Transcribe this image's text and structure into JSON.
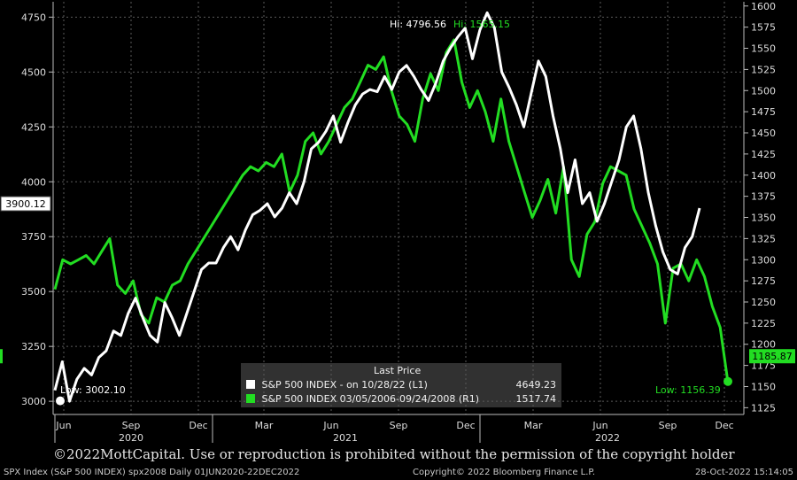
{
  "chart_data": {
    "type": "line",
    "title": "",
    "x_month_labels": [
      "Jun",
      "Sep",
      "Dec",
      "Mar",
      "Jun",
      "Sep",
      "Dec",
      "Mar",
      "Jun",
      "Sep",
      "Dec"
    ],
    "x_year_labels": [
      "2020",
      "2021",
      "2022"
    ],
    "left_axis": {
      "ticks": [
        "3000",
        "3250",
        "3500",
        "3750",
        "4000",
        "4250",
        "4500",
        "4750"
      ],
      "ylim": [
        2940,
        4820
      ]
    },
    "right_axis": {
      "ticks": [
        "1125",
        "1150",
        "1175",
        "1200",
        "1225",
        "1250",
        "1275",
        "1300",
        "1325",
        "1350",
        "1375",
        "1400",
        "1425",
        "1450",
        "1475",
        "1500",
        "1525",
        "1550",
        "1575",
        "1600"
      ],
      "ylim": [
        1117,
        1605
      ]
    },
    "series": [
      {
        "name": "S&P 500 INDEX - on 10/28/22 (L1)",
        "axis": "left",
        "color": "#ffffff",
        "values": [
          3050,
          3180,
          3000,
          3100,
          3150,
          3120,
          3200,
          3230,
          3320,
          3300,
          3400,
          3470,
          3380,
          3300,
          3270,
          3450,
          3380,
          3300,
          3400,
          3500,
          3600,
          3630,
          3630,
          3700,
          3750,
          3690,
          3780,
          3850,
          3870,
          3900,
          3840,
          3880,
          3950,
          3900,
          4000,
          4150,
          4180,
          4230,
          4300,
          4180,
          4270,
          4350,
          4400,
          4420,
          4410,
          4480,
          4420,
          4500,
          4530,
          4480,
          4420,
          4370,
          4450,
          4550,
          4610,
          4660,
          4700,
          4560,
          4690,
          4770,
          4700,
          4500,
          4430,
          4350,
          4250,
          4400,
          4550,
          4480,
          4300,
          4150,
          3950,
          4100,
          3900,
          3950,
          3820,
          3900,
          4000,
          4100,
          4250,
          4300,
          4150,
          3950,
          3800,
          3680,
          3600,
          3580,
          3700,
          3750,
          3880
        ],
        "hi_label": "Hi: 4796.56",
        "low_label": "Low: 3002.10"
      },
      {
        "name": "S&P 500 INDEX 03/05/2006-09/24/2008 (R1)",
        "axis": "right",
        "color": "#22dd22",
        "values": [
          1265,
          1300,
          1295,
          1300,
          1305,
          1295,
          1310,
          1325,
          1270,
          1260,
          1275,
          1235,
          1225,
          1255,
          1250,
          1270,
          1275,
          1295,
          1310,
          1325,
          1340,
          1355,
          1370,
          1385,
          1400,
          1410,
          1405,
          1415,
          1410,
          1425,
          1380,
          1400,
          1440,
          1450,
          1425,
          1440,
          1460,
          1480,
          1490,
          1510,
          1530,
          1525,
          1540,
          1500,
          1470,
          1460,
          1440,
          1490,
          1520,
          1500,
          1545,
          1560,
          1510,
          1480,
          1500,
          1475,
          1440,
          1490,
          1440,
          1410,
          1380,
          1350,
          1370,
          1395,
          1355,
          1410,
          1300,
          1280,
          1330,
          1345,
          1390,
          1410,
          1405,
          1400,
          1360,
          1340,
          1320,
          1295,
          1225,
          1290,
          1295,
          1275,
          1300,
          1280,
          1245,
          1220,
          1155
        ],
        "hi_label": "Hi: 1565.15",
        "low_label": "Low: 1156.39"
      }
    ],
    "last_price_left": "3900.12",
    "last_price_right": "1185.87",
    "legend": "top-center inset near bottom",
    "grid": true
  },
  "legend": {
    "title": "Last Price",
    "row1_label": "S&P 500 INDEX - on 10/28/22  (L1)",
    "row1_value": "4649.23",
    "row2_label": "S&P 500 INDEX 03/05/2006-09/24/2008  (R1)",
    "row2_value": "1517.74"
  },
  "copyright": "©2022MottCapital. Use or reproduction is prohibited without the permission of the copyright holder",
  "footer": {
    "left": "SPX Index (S&P 500 INDEX) spx2008  Daily 01JUN2020-22DEC2022",
    "center": "Copyright© 2022 Bloomberg Finance L.P.",
    "right": "28-Oct-2022 15:14:05"
  }
}
